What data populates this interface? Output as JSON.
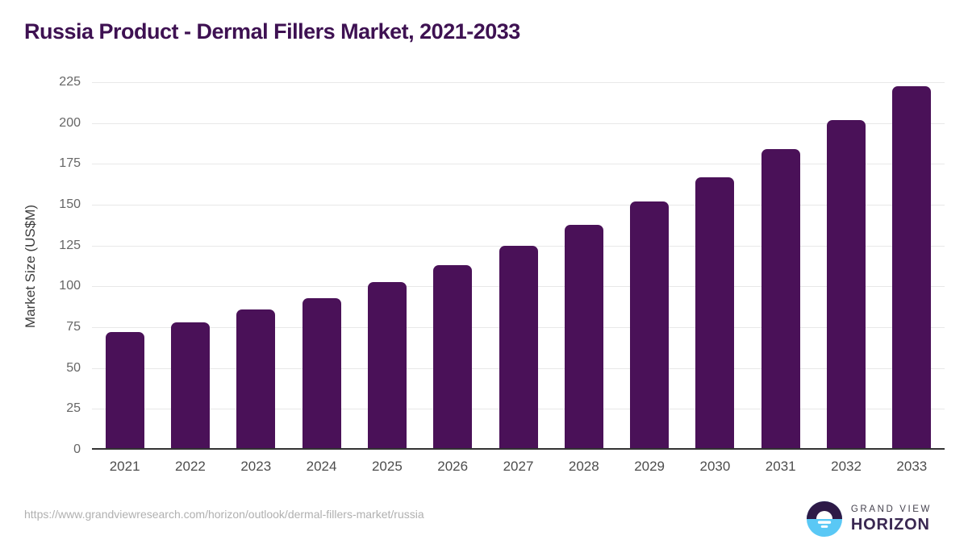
{
  "header": {
    "title": "Russia Product - Dermal Fillers Market, 2021-2033"
  },
  "chart_data": {
    "type": "bar",
    "title": "Russia Product - Dermal Fillers Market, 2021-2033",
    "categories": [
      "2021",
      "2022",
      "2023",
      "2024",
      "2025",
      "2026",
      "2027",
      "2028",
      "2029",
      "2030",
      "2031",
      "2032",
      "2033"
    ],
    "values": [
      71,
      77,
      85,
      92,
      101.5,
      112,
      124,
      136.5,
      151,
      166,
      183,
      201,
      221.5
    ],
    "xlabel": "",
    "ylabel": "Market Size (US$M)",
    "ylim": [
      0,
      225
    ],
    "yticks": [
      0,
      25,
      50,
      75,
      100,
      125,
      150,
      175,
      200,
      225
    ],
    "grid": "horizontal gridlines on, legend off",
    "legend": null,
    "bar_color": "#4a1158"
  },
  "colors": {
    "bar": "#4a1158",
    "title_text": "#3e1152",
    "axis_line": "#333333",
    "gridline": "#e8e8e8",
    "y_tick_text": "#666666",
    "x_tick_text": "#4d4d4d",
    "source_url_text": "#b0b0b0",
    "logo_circle_top": "#2e1a47",
    "logo_circle_bottom": "#5ac8f5",
    "logo_horizon_text": "#3a2852",
    "logo_grandview_text": "#45424e"
  },
  "footer": {
    "source_url": "https://www.grandviewresearch.com/horizon/outlook/dermal-fillers-market/russia",
    "logo_top": "GRAND VIEW",
    "logo_bottom": "HORIZON"
  }
}
